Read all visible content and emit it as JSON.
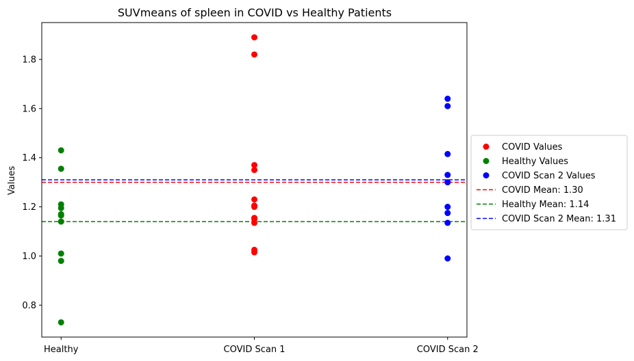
{
  "chart_data": {
    "type": "scatter",
    "title": "SUVmeans of spleen in COVID vs Healthy Patients",
    "xlabel": "",
    "ylabel": "Values",
    "categories": [
      "Healthy",
      "COVID Scan 1",
      "COVID Scan 2"
    ],
    "xlim": [
      -0.1,
      2.1
    ],
    "ylim": [
      0.67,
      1.95
    ],
    "yticks": [
      0.8,
      1.0,
      1.2,
      1.4,
      1.6,
      1.8
    ],
    "ytick_labels": [
      "0.8",
      "1.0",
      "1.2",
      "1.4",
      "1.6",
      "1.8"
    ],
    "grid": false,
    "legend_position": "right-outside",
    "series": [
      {
        "name": "COVID Values",
        "color": "#ff0000",
        "x": [
          1,
          1,
          1,
          1,
          1,
          1,
          1,
          1,
          1,
          1,
          1,
          1
        ],
        "y": [
          1.89,
          1.82,
          1.37,
          1.35,
          1.23,
          1.2,
          1.155,
          1.15,
          1.135,
          1.025,
          1.015,
          1.205
        ]
      },
      {
        "name": "Healthy Values",
        "color": "#008000",
        "x": [
          0,
          0,
          0,
          0,
          0,
          0,
          0,
          0,
          0,
          0
        ],
        "y": [
          1.43,
          1.355,
          1.21,
          1.195,
          1.17,
          1.165,
          1.14,
          1.01,
          0.98,
          0.73
        ]
      },
      {
        "name": "COVID Scan 2 Values",
        "color": "#0000ff",
        "x": [
          2,
          2,
          2,
          2,
          2,
          2,
          2,
          2,
          2
        ],
        "y": [
          1.64,
          1.61,
          1.415,
          1.33,
          1.3,
          1.2,
          1.175,
          1.135,
          0.99
        ]
      }
    ],
    "mean_lines": [
      {
        "name": "COVID Mean: 1.30",
        "value": 1.3,
        "color": "#ff0000"
      },
      {
        "name": "Healthy Mean: 1.14",
        "value": 1.14,
        "color": "#008000"
      },
      {
        "name": "COVID Scan 2 Mean: 1.31",
        "value": 1.31,
        "color": "#0000ff"
      }
    ]
  }
}
